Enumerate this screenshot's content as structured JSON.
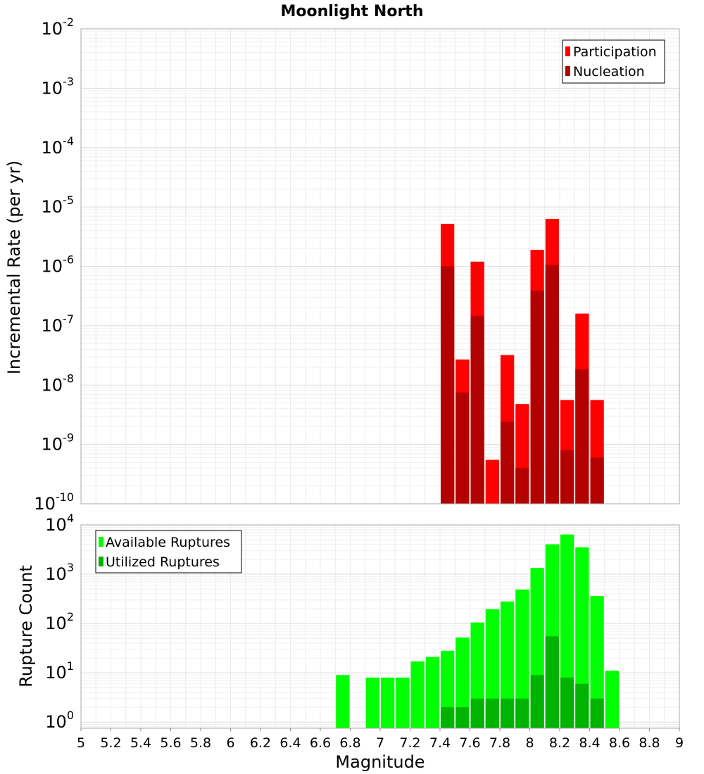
{
  "chart_data": [
    {
      "type": "bar",
      "title": "Moonlight North",
      "ylabel": "Incremental Rate (per yr)",
      "xlabel": "",
      "y_scale": "log",
      "ylim": [
        1e-10,
        0.01
      ],
      "xlim": [
        5,
        9
      ],
      "bar_width": 0.1,
      "grid": true,
      "legend_position": "top-right",
      "y_tick_exponents": [
        "-10",
        "-9",
        "-8",
        "-7",
        "-6",
        "-5",
        "-4",
        "-3",
        "-2"
      ],
      "y_tick_base": "10",
      "x": [
        7.45,
        7.55,
        7.65,
        7.75,
        7.85,
        7.95,
        8.05,
        8.15,
        8.25,
        8.35,
        8.45
      ],
      "series": [
        {
          "name": "Participation",
          "color": "#ff0000",
          "values": [
            5.2e-06,
            2.7e-08,
            1.2e-06,
            5.5e-10,
            3.2e-08,
            4.8e-09,
            1.9e-06,
            6.3e-06,
            5.6e-09,
            1.6e-07,
            5.6e-09
          ]
        },
        {
          "name": "Nucleation",
          "color": "#b30000",
          "values": [
            1e-06,
            7.5e-09,
            1.45e-07,
            null,
            2.4e-09,
            4e-10,
            3.9e-07,
            1.05e-06,
            8e-10,
            1.85e-08,
            6e-10
          ]
        }
      ]
    },
    {
      "type": "bar",
      "title": "",
      "ylabel": "Rupture Count",
      "xlabel": "Magnitude",
      "y_scale": "log",
      "ylim": [
        0.75,
        10000
      ],
      "xlim": [
        5,
        9
      ],
      "bar_width": 0.1,
      "grid": true,
      "legend_position": "top-left",
      "y_tick_exponents": [
        "0",
        "1",
        "2",
        "3",
        "4"
      ],
      "y_tick_base": "10",
      "x_ticks": [
        "5",
        "5.2",
        "5.4",
        "5.6",
        "5.8",
        "6",
        "6.2",
        "6.4",
        "6.6",
        "6.8",
        "7",
        "7.2",
        "7.4",
        "7.6",
        "7.8",
        "8",
        "8.2",
        "8.4",
        "8.6",
        "8.8",
        "9"
      ],
      "x": [
        6.75,
        6.85,
        6.95,
        7.05,
        7.15,
        7.25,
        7.35,
        7.45,
        7.55,
        7.65,
        7.75,
        7.85,
        7.95,
        8.05,
        8.15,
        8.25,
        8.35,
        8.45,
        8.55
      ],
      "series": [
        {
          "name": "Available Ruptures",
          "color": "#00ff00",
          "values": [
            9,
            null,
            8,
            8,
            8,
            17,
            21,
            28,
            52,
            105,
            195,
            280,
            490,
            1340,
            4050,
            6400,
            3500,
            360,
            11
          ]
        },
        {
          "name": "Utilized Ruptures",
          "color": "#00b300",
          "values": [
            null,
            null,
            null,
            null,
            null,
            null,
            null,
            2,
            2,
            3,
            3,
            3,
            3,
            9,
            55,
            8,
            6,
            3,
            null
          ]
        }
      ]
    }
  ]
}
